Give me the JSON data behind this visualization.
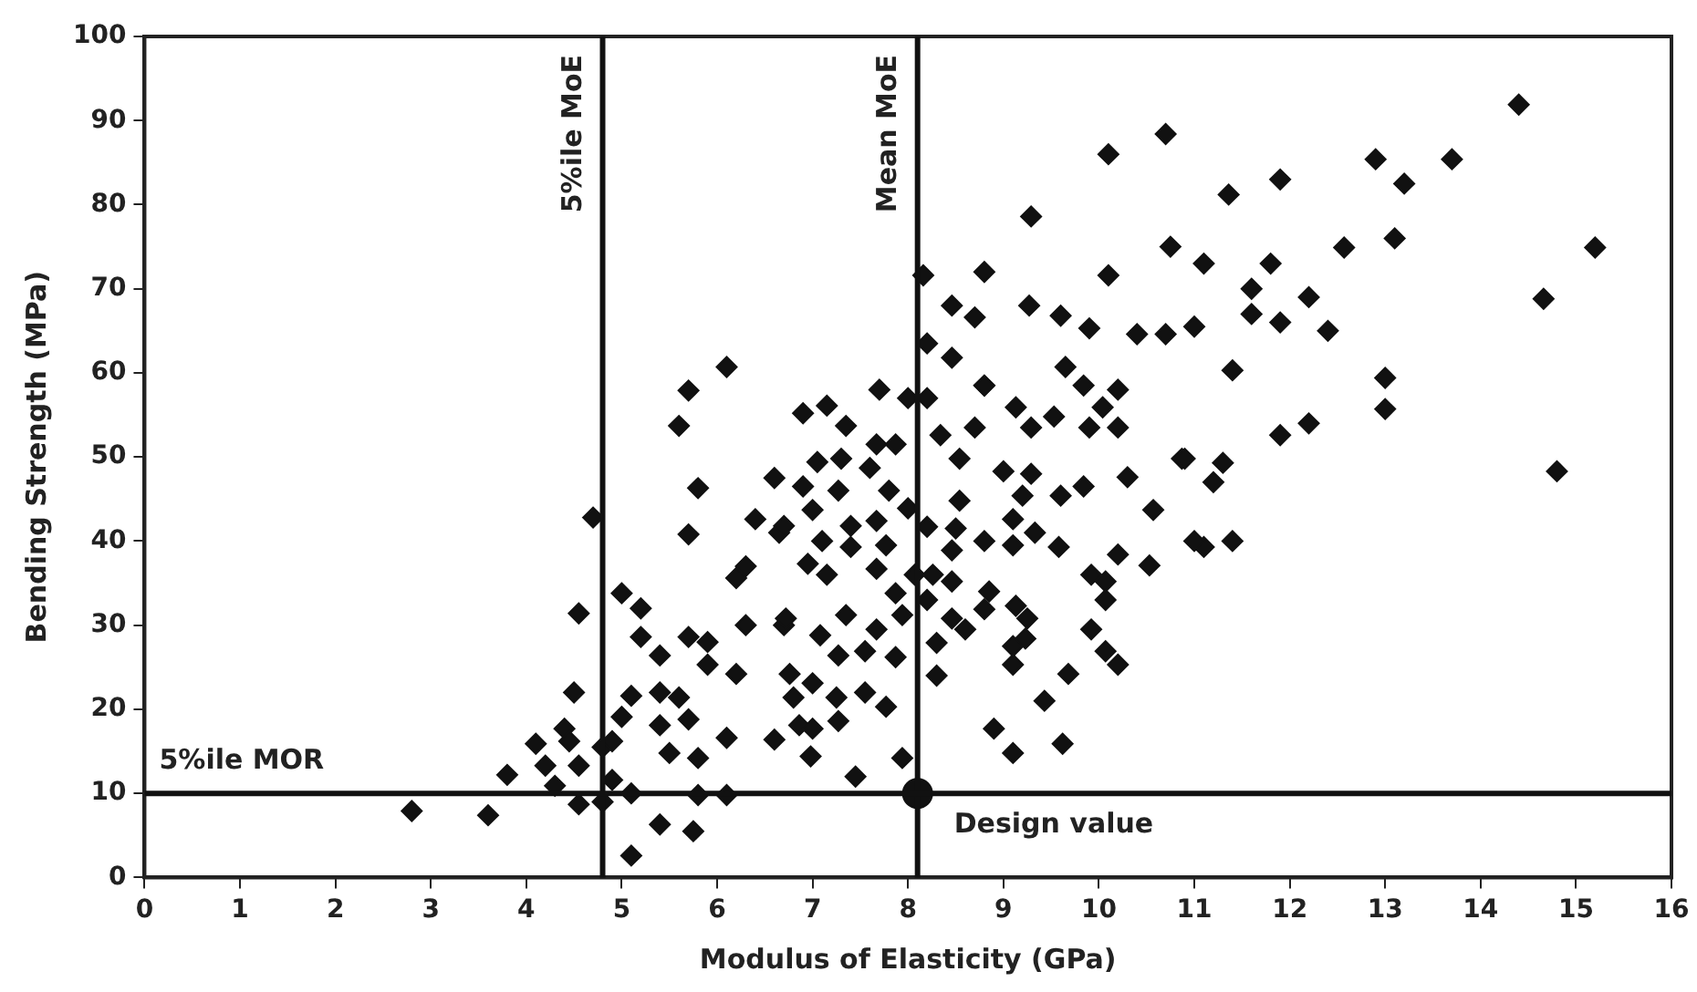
{
  "chart_data": {
    "type": "scatter",
    "xlabel": "Modulus of Elasticity (GPa)",
    "ylabel": "Bending Strength (MPa)",
    "xlim": [
      0,
      16
    ],
    "xticks": [
      0,
      1,
      2,
      3,
      4,
      5,
      6,
      7,
      8,
      9,
      10,
      11,
      12,
      13,
      14,
      15,
      16
    ],
    "ylim": [
      0,
      100
    ],
    "yticks": [
      0,
      10,
      20,
      30,
      40,
      50,
      60,
      70,
      80,
      90,
      100
    ],
    "grid": false,
    "legend": false,
    "series": [
      {
        "marker": "diamond",
        "color": "#111111",
        "x": [
          2.8,
          3.6,
          3.8,
          4.3,
          4.1,
          4.2,
          4.4,
          4.45,
          4.55,
          4.5,
          4.55,
          4.7,
          4.55,
          4.8,
          4.8,
          4.9,
          4.9,
          5.1,
          5.1,
          5.4,
          5.75,
          5.0,
          5.7,
          5.8,
          5.2,
          5.2,
          5.4,
          5.7,
          5.9,
          5.1,
          5.0,
          5.4,
          5.5,
          5.8,
          6.1,
          5.8,
          6.1,
          5.9,
          5.4,
          5.6,
          5.7,
          6.2,
          6.4,
          6.7,
          6.8,
          6.6,
          6.2,
          6.65,
          6.1,
          5.6,
          5.7,
          6.3,
          6.6,
          6.3,
          6.9,
          7.15,
          7.35,
          7.7,
          8.0,
          7.67,
          7.87,
          7.05,
          7.3,
          7.6,
          6.9,
          7.27,
          7.8,
          8.0,
          7.0,
          6.7,
          7.4,
          7.67,
          7.1,
          7.77,
          6.95,
          7.4,
          7.15,
          7.67,
          7.87,
          8.07,
          6.72,
          7.08,
          7.35,
          7.67,
          7.94,
          7.27,
          7.55,
          7.87,
          6.76,
          7.0,
          7.25,
          7.55,
          7.77,
          6.86,
          7.0,
          7.27,
          6.98,
          7.45,
          7.94,
          8.2,
          8.46,
          8.8,
          8.2,
          8.34,
          8.7,
          8.54,
          9.0,
          9.13,
          9.29,
          9.53,
          9.65,
          9.84,
          10.04,
          10.2,
          9.9,
          10.2,
          10.3,
          9.29,
          9.6,
          9.2,
          9.84,
          10.87,
          10.57,
          8.54,
          8.2,
          8.5,
          8.8,
          8.46,
          9.1,
          9.33,
          9.1,
          9.58,
          10.2,
          10.53,
          11.1,
          8.26,
          8.46,
          8.85,
          8.2,
          9.92,
          10.07,
          8.8,
          8.46,
          8.6,
          9.13,
          9.25,
          10.07,
          9.92,
          8.3,
          9.1,
          9.23,
          10.07,
          10.2,
          8.3,
          9.1,
          9.68,
          9.43,
          8.9,
          9.1,
          9.62,
          14.4,
          15.2,
          14.66,
          12.9,
          13.7,
          13.2,
          11.9,
          11.36,
          10.7,
          10.1,
          9.29,
          12.57,
          13.1,
          10.75,
          11.1,
          11.8,
          11.6,
          12.2,
          11.6,
          11.9,
          12.4,
          11.0,
          10.7,
          10.4,
          11.4,
          13.0,
          13.0,
          11.9,
          12.2,
          14.8,
          10.9,
          11.3,
          10.1,
          9.27,
          9.6,
          9.9,
          8.8,
          8.46,
          8.7,
          8.16,
          8.8,
          11.0,
          11.4,
          11.2
        ],
        "values": [
          7.9,
          7.4,
          12.2,
          10.9,
          15.9,
          13.3,
          17.7,
          16.2,
          13.3,
          22,
          31.4,
          42.8,
          8.7,
          9,
          15.5,
          16.2,
          11.6,
          10,
          2.6,
          6.3,
          5.5,
          33.8,
          40.8,
          46.3,
          32,
          28.6,
          26.4,
          28.6,
          28,
          21.6,
          19.1,
          18.1,
          14.8,
          14.2,
          16.6,
          9.8,
          9.8,
          25.3,
          22,
          21.4,
          18.8,
          24.2,
          42.6,
          30,
          21.4,
          16.4,
          35.6,
          41,
          60.7,
          53.7,
          57.9,
          37,
          47.5,
          30,
          55.2,
          56.1,
          53.7,
          58,
          57,
          51.5,
          51.5,
          49.4,
          49.8,
          48.7,
          46.5,
          46,
          46,
          43.9,
          43.7,
          41.8,
          41.8,
          42.4,
          40,
          39.5,
          37.3,
          39.3,
          36,
          36.7,
          33.8,
          36,
          30.8,
          28.8,
          31.2,
          29.5,
          31.2,
          26.4,
          26.9,
          26.2,
          24.2,
          23.1,
          21.4,
          22,
          20.3,
          18.1,
          17.7,
          18.6,
          14.4,
          12,
          14.2,
          63.5,
          61.8,
          58.5,
          57,
          52.6,
          53.5,
          49.8,
          48.3,
          55.9,
          53.5,
          54.8,
          60.7,
          58.5,
          55.9,
          58,
          53.5,
          53.5,
          47.6,
          48,
          45.4,
          45.4,
          46.5,
          49.8,
          43.7,
          44.8,
          41.7,
          41.5,
          40,
          38.9,
          42.6,
          41,
          39.5,
          39.3,
          38.4,
          37.1,
          39.3,
          36,
          35.2,
          34,
          33,
          36,
          35.2,
          31.9,
          30.8,
          29.5,
          32.3,
          30.8,
          33,
          29.5,
          27.9,
          27.5,
          28.4,
          26.9,
          25.3,
          24,
          25.3,
          24.2,
          21,
          17.7,
          14.8,
          15.9,
          91.9,
          74.9,
          68.8,
          85.4,
          85.4,
          82.5,
          83,
          81.2,
          88.4,
          86,
          78.6,
          74.9,
          76,
          75,
          73,
          73,
          70,
          69,
          67,
          66,
          65,
          65.5,
          64.6,
          64.6,
          60.3,
          59.4,
          55.7,
          52.6,
          54,
          48.3,
          49.8,
          49.3,
          71.6,
          68,
          66.8,
          65.3,
          72,
          68,
          66.6,
          71.6,
          58.5,
          40,
          40,
          47
        ]
      },
      {
        "marker": "circle",
        "color": "#111111",
        "x": [
          8.1
        ],
        "values": [
          10
        ]
      }
    ],
    "ref_lines": [
      {
        "axis": "x",
        "value": 4.8,
        "label": "5%ile MoE"
      },
      {
        "axis": "x",
        "value": 8.1,
        "label": "Mean MoE"
      },
      {
        "axis": "y",
        "value": 10,
        "label": "5%ile MOR"
      }
    ],
    "annotations": [
      {
        "text": "Design value",
        "x": 8.1,
        "y": 10
      }
    ]
  }
}
